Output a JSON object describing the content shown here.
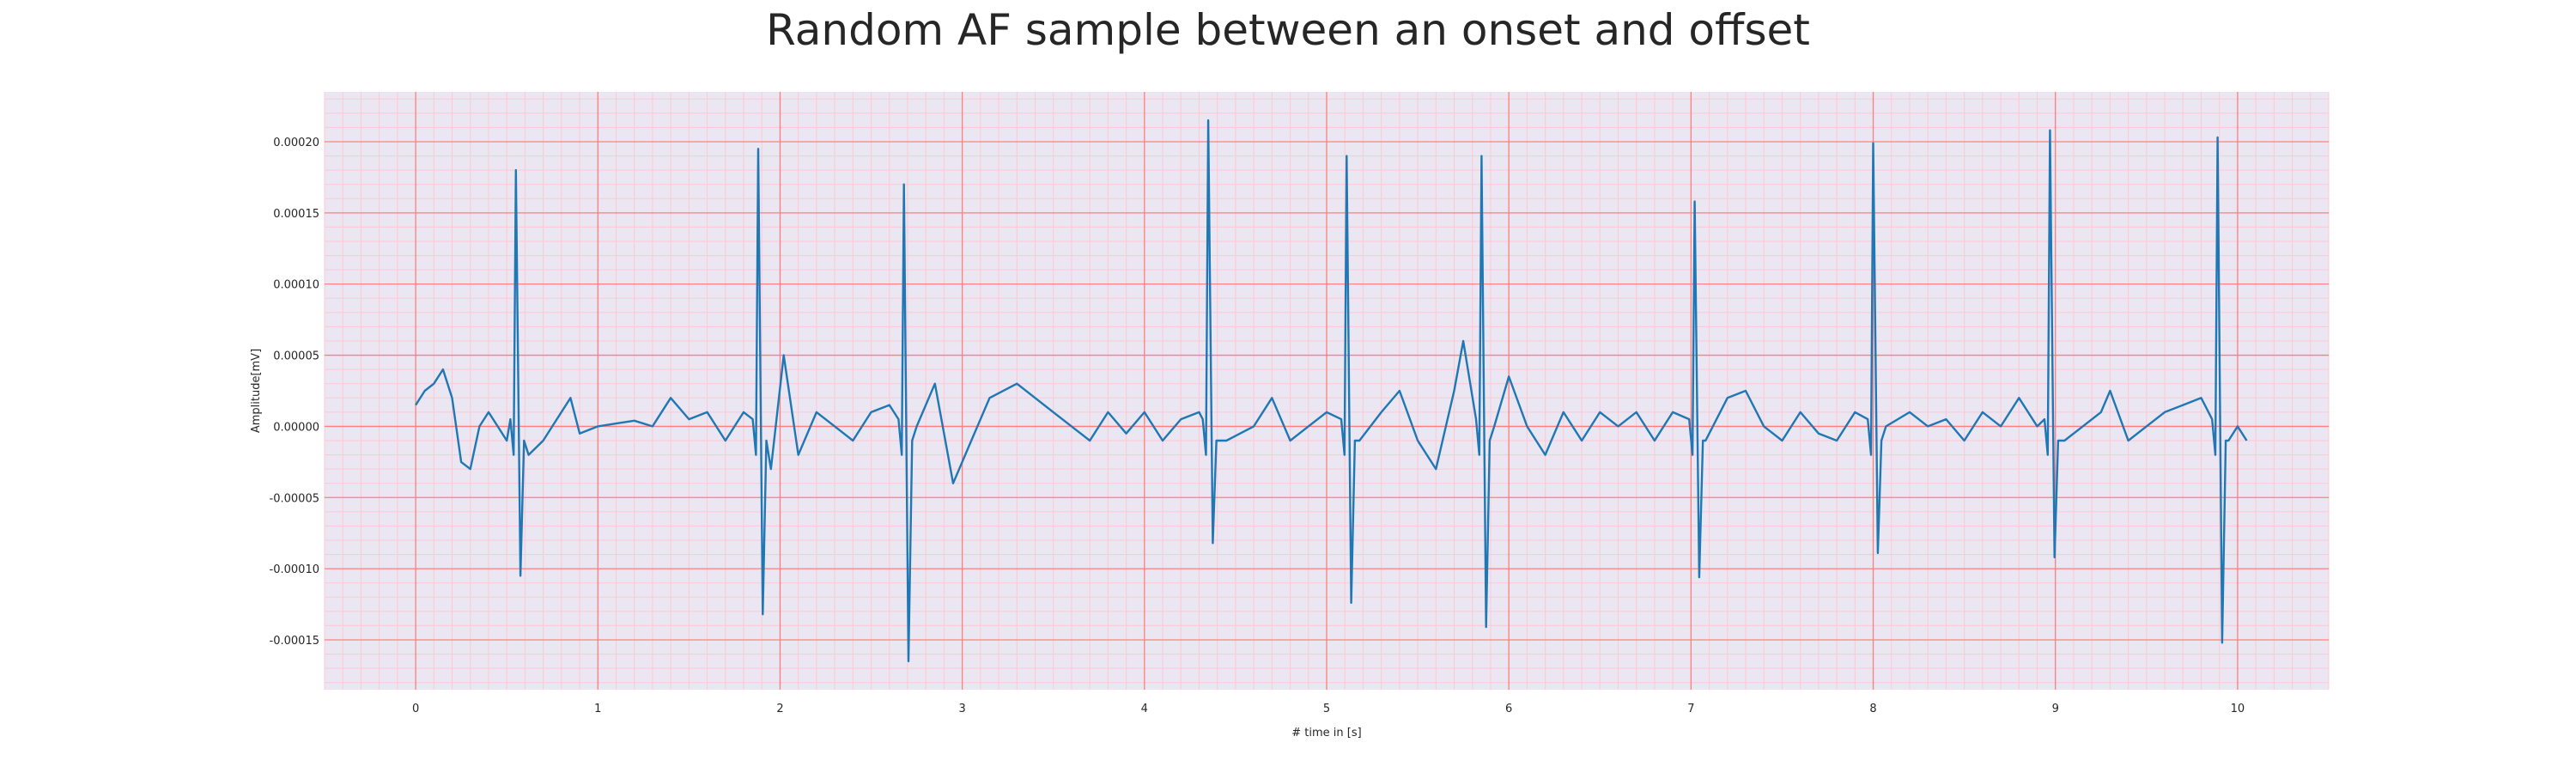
{
  "chart_data": {
    "type": "line",
    "title": "Random AF sample between an onset and offset",
    "xlabel": "# time in [s]",
    "ylabel": "Amplitude[mV]",
    "xlim": [
      -0.5,
      10.5
    ],
    "ylim": [
      -0.000185,
      0.000235
    ],
    "xticks": [
      0,
      1,
      2,
      3,
      4,
      5,
      6,
      7,
      8,
      9,
      10
    ],
    "xtick_labels": [
      "0",
      "1",
      "2",
      "3",
      "4",
      "5",
      "6",
      "7",
      "8",
      "9",
      "10"
    ],
    "yticks": [
      -0.00015,
      -0.0001,
      -5e-05,
      0.0,
      5e-05,
      0.0001,
      0.00015,
      0.0002
    ],
    "ytick_labels": [
      "-0.00015",
      "-0.00010",
      "-0.00005",
      "0.00000",
      "0.00005",
      "0.00010",
      "0.00015",
      "0.00020"
    ],
    "grid": true,
    "grid_major_color": "#ff7f7f",
    "grid_minor_color": "#ffc8d2",
    "background_color": "#eae6f2",
    "series": [
      {
        "color": "#1f77b4",
        "beats": [
          {
            "t": 0.55,
            "r": 0.00018,
            "s": -0.000105
          },
          {
            "t": 1.88,
            "r": 0.000195,
            "s": -0.000132
          },
          {
            "t": 2.68,
            "r": 0.00017,
            "s": -0.000165
          },
          {
            "t": 4.35,
            "r": 0.000215,
            "s": -8.2e-05
          },
          {
            "t": 5.11,
            "r": 0.00019,
            "s": -0.000124
          },
          {
            "t": 5.85,
            "r": 0.00019,
            "s": -0.000141
          },
          {
            "t": 7.02,
            "r": 0.000158,
            "s": -0.000106
          },
          {
            "t": 8.0,
            "r": 0.000199,
            "s": -8.9e-05
          },
          {
            "t": 8.97,
            "r": 0.000208,
            "s": -9.2e-05
          },
          {
            "t": 9.89,
            "r": 0.000203,
            "s": -0.000152
          }
        ],
        "baseline": [
          [
            0.0,
            1.5e-05
          ],
          [
            0.05,
            2.5e-05
          ],
          [
            0.1,
            3e-05
          ],
          [
            0.15,
            4e-05
          ],
          [
            0.2,
            2e-05
          ],
          [
            0.25,
            -2.5e-05
          ],
          [
            0.3,
            -3e-05
          ],
          [
            0.35,
            0.0
          ],
          [
            0.4,
            1e-05
          ],
          [
            0.45,
            0.0
          ],
          [
            0.5,
            -1e-05
          ],
          [
            0.62,
            -2e-05
          ],
          [
            0.7,
            -1e-05
          ],
          [
            0.75,
            0.0
          ],
          [
            0.85,
            2e-05
          ],
          [
            0.9,
            -5e-06
          ],
          [
            1.0,
            0.0
          ],
          [
            1.1,
            2e-06
          ],
          [
            1.2,
            4e-06
          ],
          [
            1.3,
            0.0
          ],
          [
            1.4,
            2e-05
          ],
          [
            1.5,
            5e-06
          ],
          [
            1.6,
            1e-05
          ],
          [
            1.7,
            -1e-05
          ],
          [
            1.8,
            1e-05
          ],
          [
            1.95,
            -3e-05
          ],
          [
            2.02,
            5e-05
          ],
          [
            2.1,
            -2e-05
          ],
          [
            2.2,
            1e-05
          ],
          [
            2.3,
            0.0
          ],
          [
            2.4,
            -1e-05
          ],
          [
            2.5,
            1e-05
          ],
          [
            2.6,
            1.5e-05
          ],
          [
            2.75,
            0.0
          ],
          [
            2.85,
            3e-05
          ],
          [
            2.95,
            -4e-05
          ],
          [
            3.05,
            -1e-05
          ],
          [
            3.15,
            2e-05
          ],
          [
            3.3,
            3e-05
          ],
          [
            3.4,
            2e-05
          ],
          [
            3.5,
            1e-05
          ],
          [
            3.6,
            0.0
          ],
          [
            3.7,
            -1e-05
          ],
          [
            3.8,
            1e-05
          ],
          [
            3.9,
            -5e-06
          ],
          [
            4.0,
            1e-05
          ],
          [
            4.1,
            -1e-05
          ],
          [
            4.2,
            5e-06
          ],
          [
            4.3,
            1e-05
          ],
          [
            4.45,
            -1e-05
          ],
          [
            4.6,
            0.0
          ],
          [
            4.7,
            2e-05
          ],
          [
            4.8,
            -1e-05
          ],
          [
            4.9,
            0.0
          ],
          [
            5.0,
            1e-05
          ],
          [
            5.18,
            -1e-05
          ],
          [
            5.3,
            1e-05
          ],
          [
            5.4,
            2.5e-05
          ],
          [
            5.5,
            -1e-05
          ],
          [
            5.6,
            -3e-05
          ],
          [
            5.7,
            2.5e-05
          ],
          [
            5.75,
            6e-05
          ],
          [
            5.92,
            0.0
          ],
          [
            6.0,
            3.5e-05
          ],
          [
            6.1,
            0.0
          ],
          [
            6.2,
            -2e-05
          ],
          [
            6.3,
            1e-05
          ],
          [
            6.4,
            -1e-05
          ],
          [
            6.5,
            1e-05
          ],
          [
            6.6,
            0.0
          ],
          [
            6.7,
            1e-05
          ],
          [
            6.8,
            -1e-05
          ],
          [
            6.9,
            1e-05
          ],
          [
            7.08,
            -1e-05
          ],
          [
            7.2,
            2e-05
          ],
          [
            7.3,
            2.5e-05
          ],
          [
            7.4,
            0.0
          ],
          [
            7.5,
            -1e-05
          ],
          [
            7.6,
            1e-05
          ],
          [
            7.7,
            -5e-06
          ],
          [
            7.8,
            -1e-05
          ],
          [
            7.9,
            1e-05
          ],
          [
            8.07,
            0.0
          ],
          [
            8.2,
            1e-05
          ],
          [
            8.3,
            0.0
          ],
          [
            8.4,
            5e-06
          ],
          [
            8.5,
            -1e-05
          ],
          [
            8.6,
            1e-05
          ],
          [
            8.7,
            0.0
          ],
          [
            8.8,
            2e-05
          ],
          [
            8.9,
            0.0
          ],
          [
            9.05,
            -1e-05
          ],
          [
            9.15,
            0.0
          ],
          [
            9.25,
            1e-05
          ],
          [
            9.3,
            2.5e-05
          ],
          [
            9.4,
            -1e-05
          ],
          [
            9.5,
            0.0
          ],
          [
            9.6,
            1e-05
          ],
          [
            9.7,
            1.5e-05
          ],
          [
            9.8,
            2e-05
          ],
          [
            9.95,
            -1e-05
          ],
          [
            10.0,
            0.0
          ],
          [
            10.05,
            -1e-05
          ]
        ]
      }
    ]
  }
}
